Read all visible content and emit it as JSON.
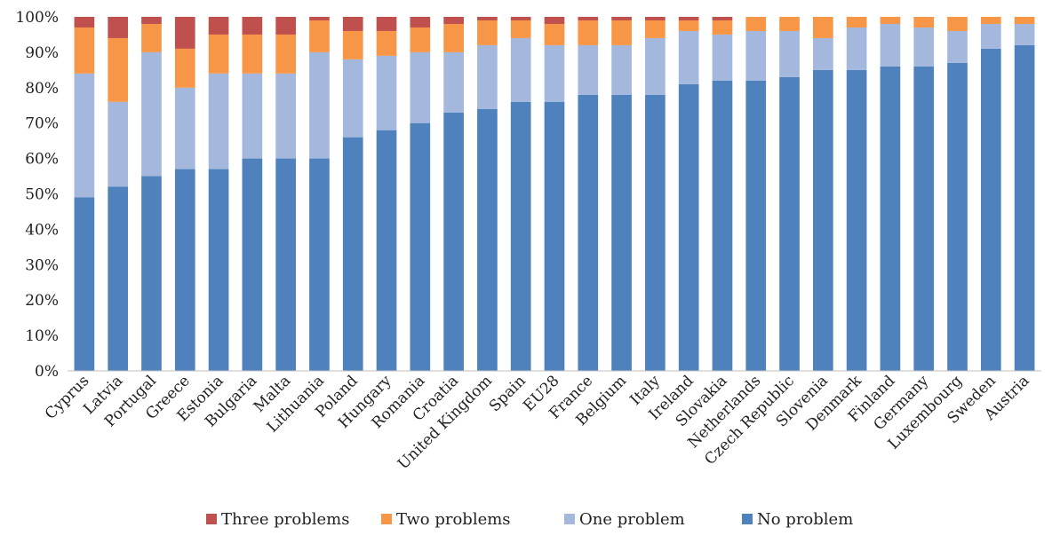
{
  "chart_data": {
    "type": "bar",
    "stacked": true,
    "ylim": [
      0,
      100
    ],
    "yticks": [
      "0%",
      "10%",
      "20%",
      "30%",
      "40%",
      "50%",
      "60%",
      "70%",
      "80%",
      "90%",
      "100%"
    ],
    "categories": [
      "Cyprus",
      "Latvia",
      "Portugal",
      "Greece",
      "Estonia",
      "Bulgaria",
      "Malta",
      "Lithuania",
      "Poland",
      "Hungary",
      "Romania",
      "Croatia",
      "United Kingdom",
      "Spain",
      "EU28",
      "France",
      "Belgium",
      "Italy",
      "Ireland",
      "Slovakia",
      "Netherlands",
      "Czech Republic",
      "Slovenia",
      "Denmark",
      "Finland",
      "Germany",
      "Luxembourg",
      "Sweden",
      "Austria"
    ],
    "series": [
      {
        "name": "No problem",
        "color": "#4f81bd",
        "values": [
          49,
          52,
          55,
          57,
          57,
          60,
          60,
          60,
          66,
          68,
          70,
          73,
          74,
          76,
          76,
          78,
          78,
          78,
          81,
          82,
          82,
          83,
          85,
          85,
          86,
          86,
          87,
          91,
          92
        ]
      },
      {
        "name": "One problem",
        "color": "#a3b8dc",
        "values": [
          35,
          24,
          35,
          23,
          27,
          24,
          24,
          30,
          22,
          21,
          20,
          17,
          18,
          18,
          16,
          14,
          14,
          16,
          15,
          13,
          14,
          13,
          9,
          12,
          12,
          11,
          9,
          7,
          6
        ]
      },
      {
        "name": "Two problems",
        "color": "#f79646",
        "values": [
          13,
          18,
          8,
          11,
          11,
          11,
          11,
          9,
          8,
          7,
          7,
          8,
          7,
          5,
          6,
          7,
          7,
          5,
          3,
          4,
          4,
          4,
          6,
          3,
          2,
          3,
          4,
          2,
          2
        ]
      },
      {
        "name": "Three problems",
        "color": "#c0504d",
        "values": [
          3,
          6,
          2,
          9,
          5,
          5,
          5,
          1,
          4,
          4,
          3,
          2,
          1,
          1,
          2,
          1,
          1,
          1,
          1,
          1,
          0,
          0,
          0,
          0,
          0,
          0,
          0,
          0,
          0
        ]
      }
    ],
    "legend": {
      "position": "bottom",
      "order": [
        "Three problems",
        "Two problems",
        "One problem",
        "No problem"
      ]
    },
    "grid": false
  }
}
